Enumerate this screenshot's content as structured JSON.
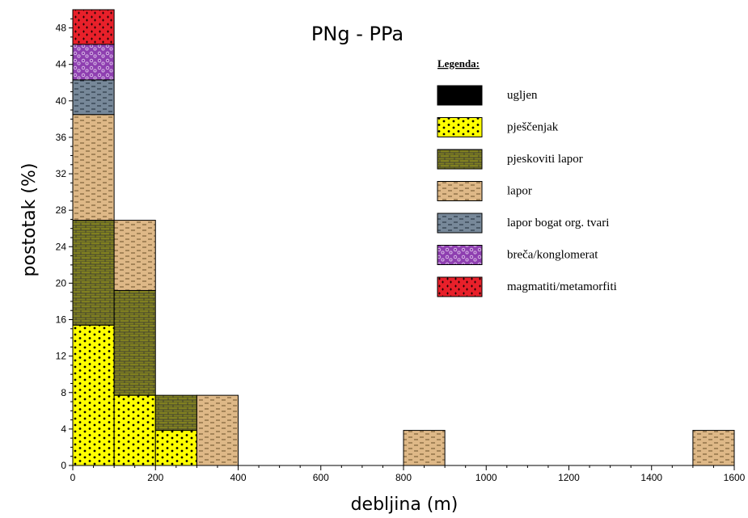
{
  "chart_data": {
    "type": "bar",
    "title": "PNg - PPa",
    "xlabel": "debljina (m)",
    "ylabel": "postotak (%)",
    "xlim": [
      0,
      1600
    ],
    "ylim": [
      0,
      50
    ],
    "x_ticks": [
      0,
      200,
      400,
      600,
      800,
      1000,
      1200,
      1400,
      1600
    ],
    "y_ticks": [
      0,
      4,
      8,
      12,
      16,
      20,
      24,
      28,
      32,
      36,
      40,
      44,
      48
    ],
    "bin_width": 100,
    "legend": {
      "title": "Legenda:",
      "position": "top-right",
      "entries": [
        {
          "name": "ugljen",
          "color": "#000000",
          "pattern": "solid"
        },
        {
          "name": "pješčenjak",
          "color": "#ffff00",
          "pattern": "dots"
        },
        {
          "name": "pjeskoviti lapor",
          "color": "#808020",
          "pattern": "bricks"
        },
        {
          "name": "lapor",
          "color": "#deb887",
          "pattern": "dashes"
        },
        {
          "name": "lapor bogat org. tvari",
          "color": "#778899",
          "pattern": "dashes-dark"
        },
        {
          "name": "breča/konglomerat",
          "color": "#a000ff",
          "pattern": "circles"
        },
        {
          "name": "magmatiti/metamorfiti",
          "color": "#ff0000",
          "pattern": "crosses"
        }
      ]
    },
    "bins": [
      {
        "x0": 0,
        "x1": 100,
        "segments": [
          {
            "series": "pješčenjak",
            "value": 15.4
          },
          {
            "series": "pjeskoviti lapor",
            "value": 11.5
          },
          {
            "series": "lapor",
            "value": 11.6
          },
          {
            "series": "lapor bogat org. tvari",
            "value": 3.8
          },
          {
            "series": "breča/konglomerat",
            "value": 3.9
          },
          {
            "series": "magmatiti/metamorfiti",
            "value": 3.8
          }
        ]
      },
      {
        "x0": 100,
        "x1": 200,
        "segments": [
          {
            "series": "pješčenjak",
            "value": 7.7
          },
          {
            "series": "pjeskoviti lapor",
            "value": 11.5
          },
          {
            "series": "lapor",
            "value": 7.7
          }
        ]
      },
      {
        "x0": 200,
        "x1": 300,
        "segments": [
          {
            "series": "pješčenjak",
            "value": 3.85
          },
          {
            "series": "pjeskoviti lapor",
            "value": 3.85
          }
        ]
      },
      {
        "x0": 300,
        "x1": 400,
        "segments": [
          {
            "series": "lapor",
            "value": 7.7
          }
        ]
      },
      {
        "x0": 800,
        "x1": 900,
        "segments": [
          {
            "series": "lapor",
            "value": 3.85
          }
        ]
      },
      {
        "x0": 1500,
        "x1": 1600,
        "segments": [
          {
            "series": "lapor",
            "value": 3.85
          }
        ]
      }
    ]
  }
}
